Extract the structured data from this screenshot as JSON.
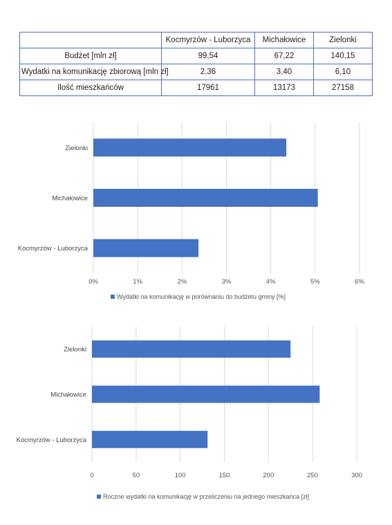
{
  "table": {
    "headers": [
      "",
      "Kocmyrzów - Luborzyca",
      "Michałowice",
      "Zielonki"
    ],
    "rows": [
      [
        "Budżet [mln zł]",
        "99,54",
        "67,22",
        "140,15"
      ],
      [
        "Wydatki na komunikację zbiorową [mln zł]",
        "2,36",
        "3,40",
        "6,10"
      ],
      [
        "Ilość mieszkańców",
        "17961",
        "13173",
        "27158"
      ]
    ]
  },
  "chart_data": [
    {
      "type": "bar",
      "orientation": "horizontal",
      "categories": [
        "Kocmyrzów - Luborzyca",
        "Michałowice",
        "Zielonki"
      ],
      "series": [
        {
          "name": "Wydatki na komunikację w porównaniu do budżetu gminy [%]",
          "values": [
            2.37,
            5.06,
            4.35
          ],
          "color": "#4472C4"
        }
      ],
      "xticks": [
        "0%",
        "1%",
        "2%",
        "3%",
        "4%",
        "5%",
        "6%"
      ],
      "xlim": [
        0,
        6
      ],
      "grid": true,
      "legend": "bottom"
    },
    {
      "type": "bar",
      "orientation": "horizontal",
      "categories": [
        "Kocmyrzów - Luborzyca",
        "Michałowice",
        "Zielonki"
      ],
      "series": [
        {
          "name": "Roczne wydatki na komunikację w przeliczeniu na jednego mieszkańca [zł]",
          "values": [
            131,
            258,
            225
          ],
          "color": "#4472C4"
        }
      ],
      "xticks": [
        "0",
        "50",
        "100",
        "150",
        "200",
        "250",
        "300"
      ],
      "xlim": [
        0,
        300
      ],
      "grid": true,
      "legend": "bottom"
    }
  ]
}
